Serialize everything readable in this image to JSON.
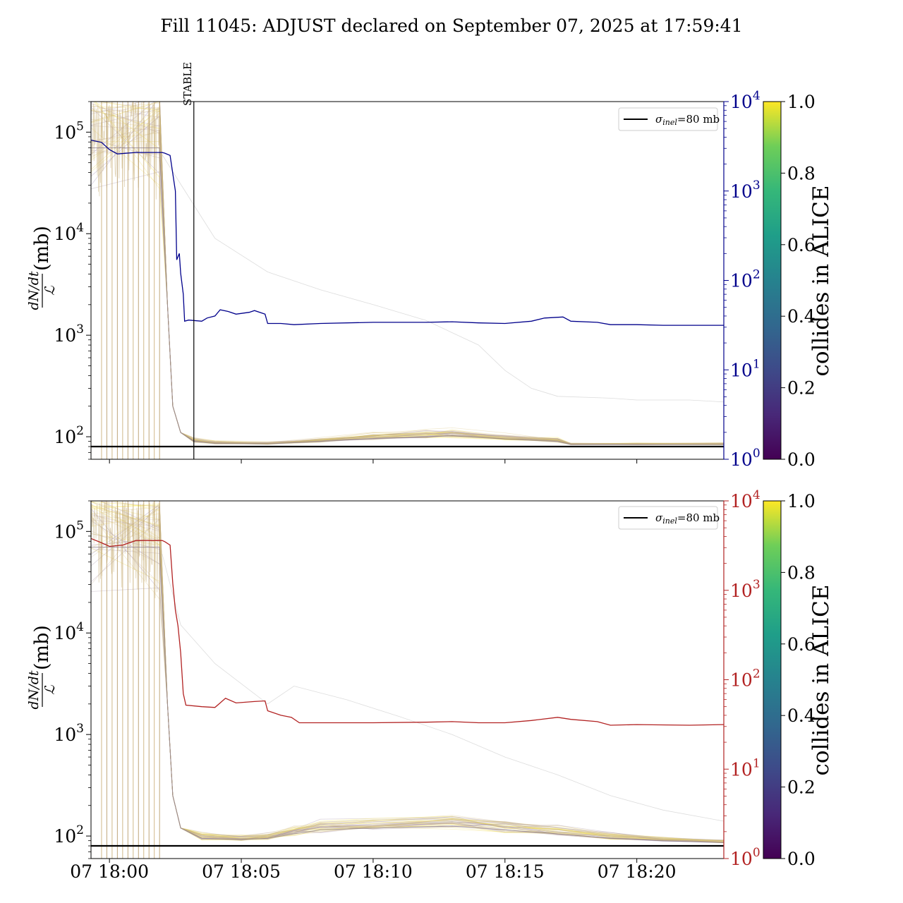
{
  "title": "Fill 11045: ADJUST declared on September 07, 2025 at 17:59:41",
  "colors": {
    "top_right_axis": "#00008b",
    "bottom_right_axis": "#b22222",
    "reference_line": "#000000"
  },
  "colorbar": {
    "label": "collides in ALICE",
    "ticks": [
      "0.0",
      "0.2",
      "0.4",
      "0.6",
      "0.8",
      "1.0"
    ],
    "colormap": "viridis"
  },
  "legend": {
    "sigma_symbol": "σ",
    "sigma_sub": "inel",
    "sigma_value": "=80 mb"
  },
  "y_label": {
    "numerator": "dN/dt",
    "denominator": "ℒ",
    "unit": "(mb)"
  },
  "x_tick_labels": [
    "07 18:00",
    "07 18:05",
    "07 18:10",
    "07 18:15",
    "07 18:20"
  ],
  "left_tick_exponents": [
    "2",
    "3",
    "4",
    "5"
  ],
  "right_tick_exponents": [
    "0",
    "1",
    "2",
    "3",
    "4"
  ],
  "tick_base": "10",
  "chart_data": [
    {
      "type": "line",
      "panel": "top",
      "x_unit": "minutes after 2025-09-07 18:00",
      "xlim": [
        -0.7,
        23.3
      ],
      "x_ticks": [
        0,
        5,
        10,
        15,
        20
      ],
      "y_scale": "log",
      "ylim": [
        60,
        200000
      ],
      "y2_scale": "log",
      "y2lim": [
        1,
        10000
      ],
      "y2_color": "#00008b",
      "reference_line_y": 80,
      "annotation": {
        "text": "STABLE",
        "x": 3.2
      },
      "grid": false,
      "legend_position": "top-right",
      "y2_series": {
        "color": "#00008b",
        "points": [
          [
            -0.7,
            3700
          ],
          [
            -0.3,
            3500
          ],
          [
            0.0,
            2900
          ],
          [
            0.3,
            2600
          ],
          [
            1.0,
            2700
          ],
          [
            2.0,
            2700
          ],
          [
            2.1,
            2650
          ],
          [
            2.3,
            2500
          ],
          [
            2.5,
            1000
          ],
          [
            2.55,
            170
          ],
          [
            2.65,
            200
          ],
          [
            2.7,
            120
          ],
          [
            2.8,
            70
          ],
          [
            2.85,
            35
          ],
          [
            3.0,
            36
          ],
          [
            3.5,
            35
          ],
          [
            3.7,
            38
          ],
          [
            4.0,
            40
          ],
          [
            4.2,
            47
          ],
          [
            4.5,
            45
          ],
          [
            4.8,
            42
          ],
          [
            5.3,
            44
          ],
          [
            5.5,
            46
          ],
          [
            5.9,
            42
          ],
          [
            6.0,
            33
          ],
          [
            6.5,
            33
          ],
          [
            7.0,
            32
          ],
          [
            8.0,
            33
          ],
          [
            10.0,
            34
          ],
          [
            12.0,
            34
          ],
          [
            13.0,
            34.5
          ],
          [
            14.0,
            33.5
          ],
          [
            15.0,
            33
          ],
          [
            16.0,
            35
          ],
          [
            16.5,
            38
          ],
          [
            17.2,
            39
          ],
          [
            17.5,
            35
          ],
          [
            18.5,
            34
          ],
          [
            19.0,
            32
          ],
          [
            20.0,
            32
          ],
          [
            21.0,
            31.5
          ],
          [
            22.0,
            31.5
          ],
          [
            23.3,
            31.5
          ]
        ]
      },
      "series_summary": {
        "median_rate": [
          [
            -0.7,
            70000
          ],
          [
            1.9,
            70000
          ],
          [
            2.2,
            2000
          ],
          [
            2.4,
            200
          ],
          [
            2.7,
            110
          ],
          [
            3.2,
            90
          ],
          [
            4.0,
            86
          ],
          [
            6.0,
            85
          ],
          [
            8.0,
            90
          ],
          [
            10.0,
            96
          ],
          [
            12.0,
            100
          ],
          [
            13.0,
            102
          ],
          [
            15.0,
            95
          ],
          [
            17.0,
            90
          ],
          [
            17.5,
            84
          ],
          [
            20.0,
            84
          ],
          [
            23.3,
            84
          ]
        ],
        "outlier_rate": [
          [
            2.0,
            60000
          ],
          [
            2.8,
            28000
          ],
          [
            4.0,
            9000
          ],
          [
            6.0,
            4200
          ],
          [
            8.0,
            2800
          ],
          [
            10.0,
            2000
          ],
          [
            12.0,
            1400
          ],
          [
            14.0,
            800
          ],
          [
            15.0,
            450
          ],
          [
            16.0,
            300
          ],
          [
            17.0,
            250
          ],
          [
            19.0,
            240
          ],
          [
            20.0,
            230
          ],
          [
            22.0,
            230
          ],
          [
            23.3,
            220
          ]
        ]
      }
    },
    {
      "type": "line",
      "panel": "bottom",
      "x_unit": "minutes after 2025-09-07 18:00",
      "xlim": [
        -0.7,
        23.3
      ],
      "x_ticks": [
        0,
        5,
        10,
        15,
        20
      ],
      "y_scale": "log",
      "ylim": [
        60,
        200000
      ],
      "y2_scale": "log",
      "y2lim": [
        1,
        10000
      ],
      "y2_color": "#b22222",
      "reference_line_y": 80,
      "grid": false,
      "legend_position": "top-right",
      "y2_series": {
        "color": "#b22222",
        "points": [
          [
            -0.7,
            3800
          ],
          [
            -0.3,
            3400
          ],
          [
            0.0,
            3100
          ],
          [
            0.5,
            3200
          ],
          [
            1.0,
            3600
          ],
          [
            2.0,
            3600
          ],
          [
            2.1,
            3500
          ],
          [
            2.3,
            3200
          ],
          [
            2.4,
            1200
          ],
          [
            2.5,
            600
          ],
          [
            2.6,
            400
          ],
          [
            2.7,
            200
          ],
          [
            2.8,
            70
          ],
          [
            2.9,
            52
          ],
          [
            3.5,
            50
          ],
          [
            4.0,
            49
          ],
          [
            4.2,
            55
          ],
          [
            4.4,
            62
          ],
          [
            4.8,
            55
          ],
          [
            5.5,
            57
          ],
          [
            5.9,
            58
          ],
          [
            6.0,
            45
          ],
          [
            6.5,
            40
          ],
          [
            6.9,
            38
          ],
          [
            7.2,
            33
          ],
          [
            8.0,
            33
          ],
          [
            10.0,
            33
          ],
          [
            12.0,
            33.5
          ],
          [
            13.0,
            34
          ],
          [
            14.0,
            33
          ],
          [
            15.0,
            33
          ],
          [
            16.0,
            35
          ],
          [
            17.0,
            38
          ],
          [
            17.5,
            36
          ],
          [
            18.5,
            34
          ],
          [
            19.0,
            31
          ],
          [
            20.0,
            31.5
          ],
          [
            22.0,
            31
          ],
          [
            23.3,
            31.5
          ]
        ]
      },
      "series_summary": {
        "median_rate": [
          [
            -0.7,
            70000
          ],
          [
            1.9,
            70000
          ],
          [
            2.2,
            2000
          ],
          [
            2.4,
            250
          ],
          [
            2.7,
            120
          ],
          [
            3.5,
            95
          ],
          [
            5.0,
            92
          ],
          [
            6.0,
            95
          ],
          [
            7.0,
            105
          ],
          [
            8.0,
            115
          ],
          [
            10.0,
            120
          ],
          [
            13.0,
            125
          ],
          [
            15.0,
            115
          ],
          [
            17.0,
            105
          ],
          [
            19.0,
            95
          ],
          [
            21.0,
            90
          ],
          [
            23.3,
            86
          ]
        ],
        "outlier_rate": [
          [
            2.0,
            60000
          ],
          [
            2.7,
            12000
          ],
          [
            4.0,
            5000
          ],
          [
            6.0,
            2000
          ],
          [
            7.0,
            3000
          ],
          [
            9.0,
            2200
          ],
          [
            11.0,
            1500
          ],
          [
            13.0,
            1000
          ],
          [
            15.0,
            600
          ],
          [
            17.0,
            400
          ],
          [
            19.0,
            250
          ],
          [
            21.0,
            180
          ],
          [
            23.3,
            140
          ]
        ]
      }
    }
  ]
}
